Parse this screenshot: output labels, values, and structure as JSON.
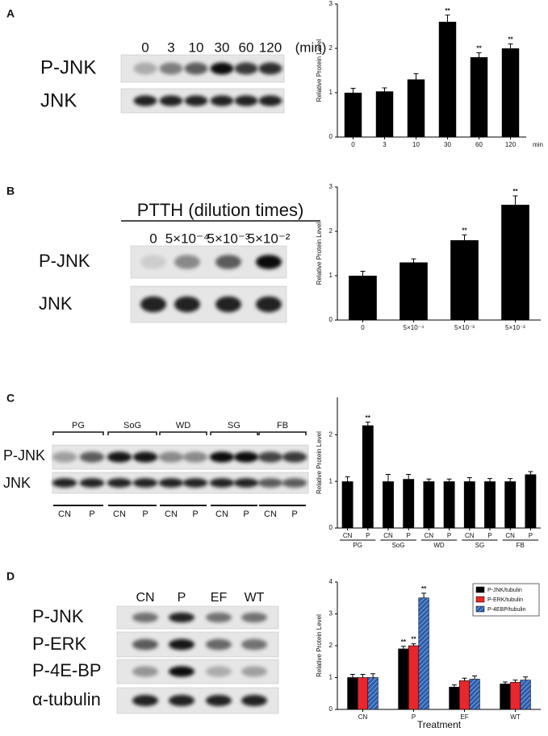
{
  "blots": [
    {
      "panel": "A",
      "lanes": [
        "0",
        "3",
        "10",
        "30",
        "60",
        "120"
      ],
      "unit": "(min)",
      "rows": [
        "P-JNK",
        "JNK"
      ]
    },
    {
      "panel": "B",
      "header": "PTTH (dilution times)",
      "lanes": [
        "0",
        "5×10⁻⁴",
        "5×10⁻³",
        "5×10⁻²"
      ],
      "rows": [
        "P-JNK",
        "JNK"
      ]
    },
    {
      "panel": "C",
      "groups": [
        "PG",
        "SoG",
        "WD",
        "SG",
        "FB"
      ],
      "lanes": [
        "CN",
        "P",
        "CN",
        "P",
        "CN",
        "P",
        "CN",
        "P",
        "CN",
        "P"
      ],
      "rows": [
        "P-JNK",
        "JNK"
      ]
    },
    {
      "panel": "D",
      "lanes": [
        "CN",
        "P",
        "EF",
        "WT"
      ],
      "rows": [
        "P-JNK",
        "P-ERK",
        "P-4E-BP",
        "α-tubulin"
      ]
    }
  ],
  "chart_data": [
    {
      "type": "bar",
      "ylabel": "Relative Protein Level",
      "xlabel": "min",
      "categories": [
        "0",
        "3",
        "10",
        "30",
        "60",
        "120"
      ],
      "values": [
        1.0,
        1.03,
        1.3,
        2.6,
        1.8,
        2.0
      ],
      "errors": [
        0.1,
        0.08,
        0.13,
        0.15,
        0.1,
        0.1
      ],
      "annotations": [
        null,
        null,
        null,
        "**",
        "**",
        "**"
      ],
      "color": "#000000",
      "ylim": [
        0,
        3
      ],
      "yticks": [
        0,
        1,
        2,
        3
      ]
    },
    {
      "type": "bar",
      "ylabel": "Relative Protein Level",
      "categories": [
        "0",
        "5×10⁻⁴",
        "5×10⁻³",
        "5×10⁻²"
      ],
      "values": [
        1.0,
        1.3,
        1.8,
        2.6
      ],
      "errors": [
        0.1,
        0.08,
        0.12,
        0.2
      ],
      "annotations": [
        null,
        null,
        "**",
        "**"
      ],
      "color": "#000000",
      "ylim": [
        0,
        3
      ],
      "yticks": [
        0,
        1,
        2,
        3
      ]
    },
    {
      "type": "bar",
      "ylabel": "Relative Protein Level",
      "categories": [
        "CN",
        "P",
        "CN",
        "P",
        "CN",
        "P",
        "CN",
        "P",
        "CN",
        "P"
      ],
      "groups": [
        "PG",
        "SoG",
        "WD",
        "SG",
        "FB"
      ],
      "values": [
        1.0,
        2.2,
        1.0,
        1.05,
        1.0,
        1.0,
        1.0,
        1.0,
        1.0,
        1.15
      ],
      "errors": [
        0.1,
        0.07,
        0.15,
        0.1,
        0.05,
        0.05,
        0.08,
        0.06,
        0.06,
        0.06
      ],
      "annotations": [
        null,
        "**",
        null,
        null,
        null,
        null,
        null,
        null,
        null,
        null
      ],
      "color": "#000000",
      "ylim": [
        0,
        2.8
      ],
      "yticks": [
        0,
        1,
        2
      ]
    },
    {
      "type": "bar",
      "ylabel": "Relative Protein Level",
      "xlabel": "Treatment",
      "categories": [
        "CN",
        "P",
        "EF",
        "WT"
      ],
      "legend": "upper right",
      "series": [
        {
          "name": "P-JNK/tubulin",
          "color": "#000000",
          "values": [
            1.0,
            1.9,
            0.7,
            0.8
          ],
          "errors": [
            0.1,
            0.08,
            0.07,
            0.06
          ],
          "annotations": [
            null,
            "**",
            null,
            null
          ]
        },
        {
          "name": "P-ERK/tubulin",
          "color": "#e8262b",
          "values": [
            1.0,
            2.0,
            0.9,
            0.85
          ],
          "errors": [
            0.1,
            0.06,
            0.08,
            0.07
          ],
          "annotations": [
            null,
            "**",
            null,
            null
          ]
        },
        {
          "name": "P-4EBP/tubulin",
          "color": "#2a5caa",
          "hatch": true,
          "values": [
            1.0,
            3.5,
            0.95,
            0.92
          ],
          "errors": [
            0.12,
            0.15,
            0.1,
            0.1
          ],
          "annotations": [
            null,
            "**",
            null,
            null
          ]
        }
      ],
      "ylim": [
        0,
        4
      ],
      "yticks": [
        0,
        1,
        2,
        3,
        4
      ]
    }
  ]
}
